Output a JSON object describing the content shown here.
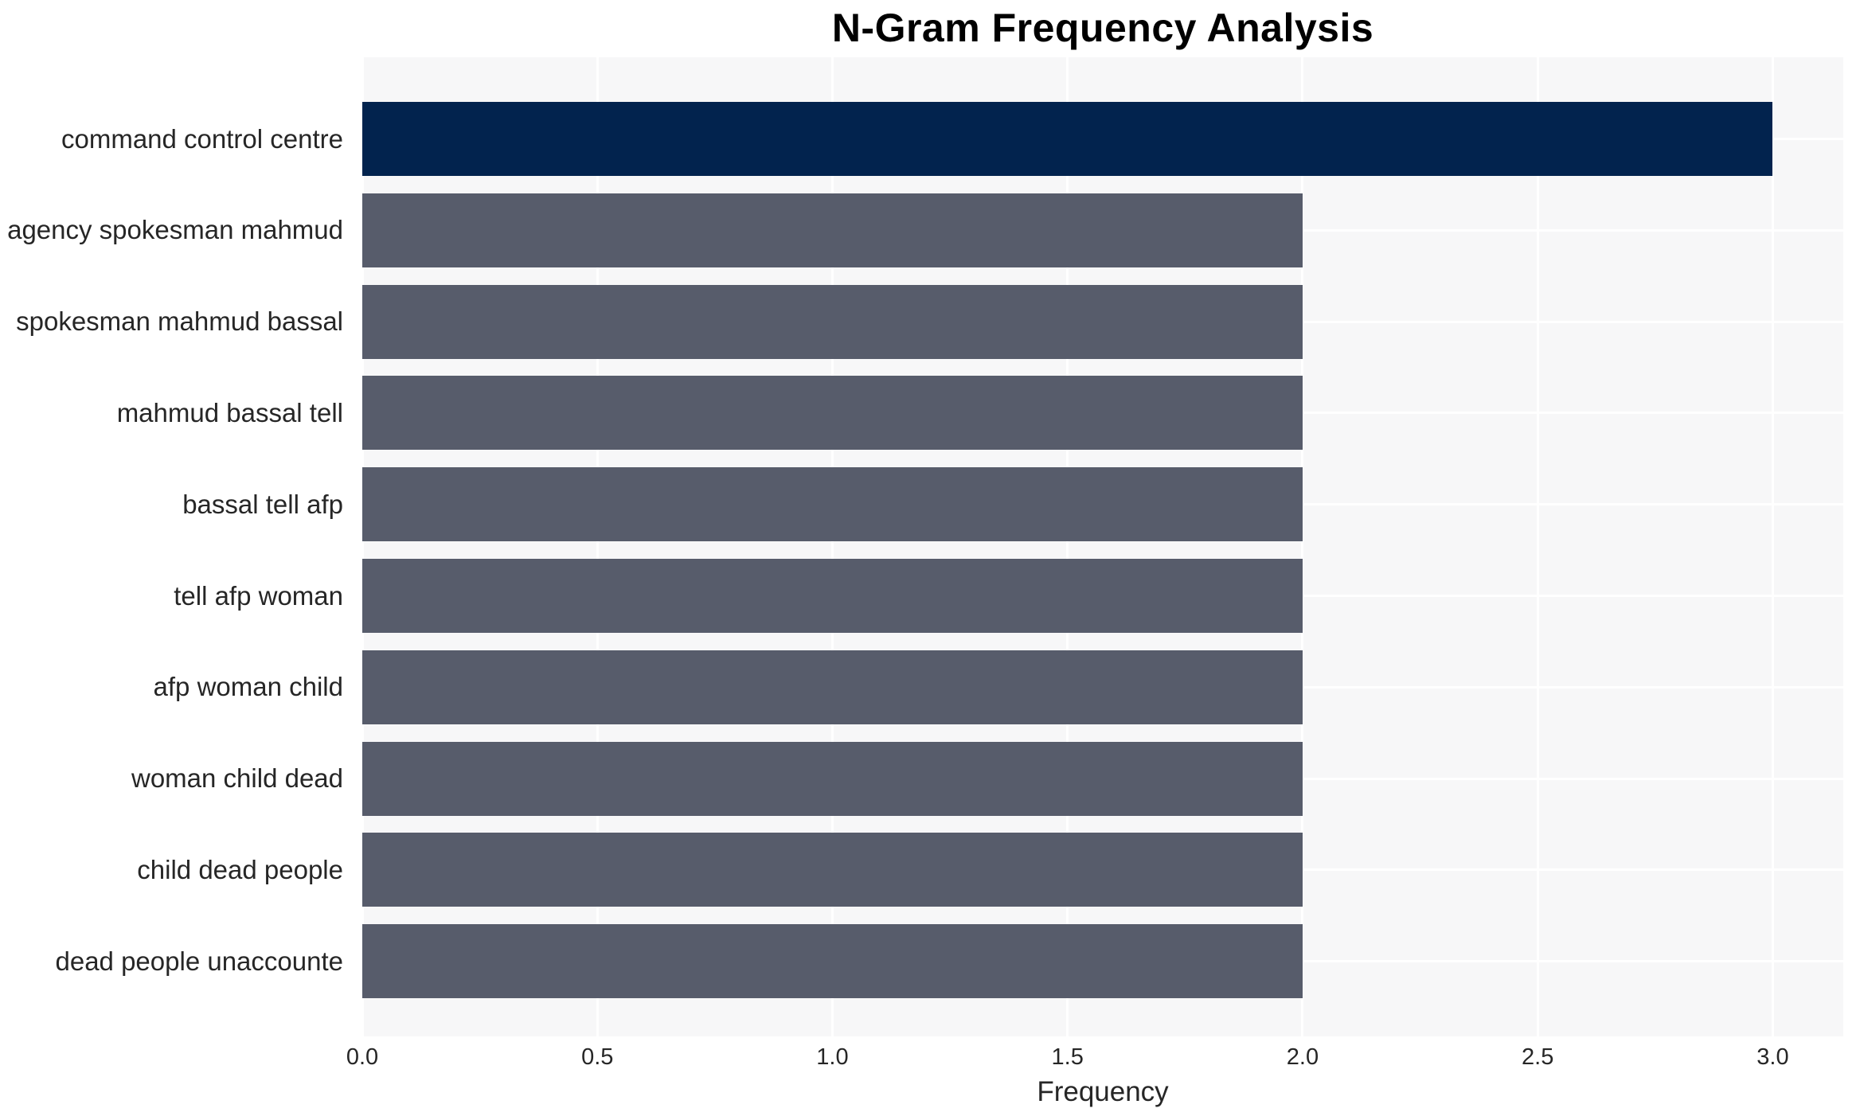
{
  "chart_data": {
    "type": "bar",
    "orientation": "horizontal",
    "title": "N-Gram Frequency Analysis",
    "xlabel": "Frequency",
    "ylabel": "",
    "categories": [
      "command control centre",
      "agency spokesman mahmud",
      "spokesman mahmud bassal",
      "mahmud bassal tell",
      "bassal tell afp",
      "tell afp woman",
      "afp woman child",
      "woman child dead",
      "child dead people",
      "dead people unaccounte"
    ],
    "values": [
      3,
      2,
      2,
      2,
      2,
      2,
      2,
      2,
      2,
      2
    ],
    "bar_colors": [
      "#02234e",
      "#575c6b",
      "#575c6b",
      "#575c6b",
      "#575c6b",
      "#575c6b",
      "#575c6b",
      "#575c6b",
      "#575c6b",
      "#575c6b"
    ],
    "x_ticks": [
      0.0,
      0.5,
      1.0,
      1.5,
      2.0,
      2.5,
      3.0
    ],
    "x_tick_labels": [
      "0.0",
      "0.5",
      "1.0",
      "1.5",
      "2.0",
      "2.5",
      "3.0"
    ],
    "xlim": [
      0,
      3.15
    ],
    "grid": true,
    "legend": false,
    "colors": {
      "highlight_bar": "#02234e",
      "default_bar": "#575c6b",
      "plot_background": "#f7f7f8",
      "figure_background": "#ffffff",
      "grid_line": "#ffffff",
      "text": "#262626",
      "title_text": "#000000"
    }
  }
}
